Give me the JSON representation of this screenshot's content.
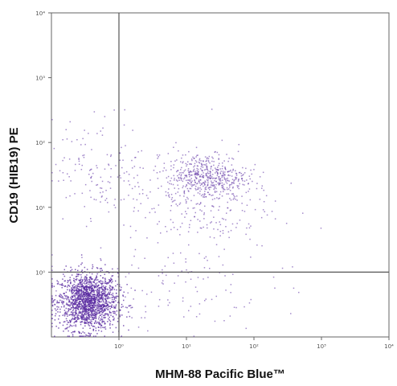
{
  "chart_data": {
    "type": "scatter",
    "title": "",
    "xlabel": "MHM-88 Pacific Blue™",
    "ylabel": "CD19 (HIB19) PE",
    "x_scale": "log",
    "y_scale": "log",
    "xlim": [
      0.1,
      10000
    ],
    "ylim": [
      0.1,
      10000
    ],
    "x_ticks": [
      "10⁰",
      "10¹",
      "10²",
      "10³",
      "10⁴"
    ],
    "y_ticks": [
      "10⁰",
      "10¹",
      "10²",
      "10³",
      "10⁴"
    ],
    "quadrant_gates": {
      "x": 1,
      "y": 1
    },
    "grid": false,
    "dot_color": "#5a2ba0",
    "populations": [
      {
        "center": [
          0.35,
          0.35
        ],
        "spread_decades": [
          0.22,
          0.22
        ],
        "share": 0.62
      },
      {
        "center": [
          20,
          30
        ],
        "spread_decades": [
          0.3,
          0.18
        ],
        "share": 0.18
      },
      {
        "center": [
          15,
          12
        ],
        "spread_decades": [
          0.55,
          0.4
        ],
        "share": 0.1
      },
      {
        "center": [
          0.5,
          40
        ],
        "spread_decades": [
          0.35,
          0.4
        ],
        "share": 0.05
      },
      {
        "center": [
          4,
          0.6
        ],
        "spread_decades": [
          0.8,
          0.35
        ],
        "share": 0.05
      }
    ]
  }
}
